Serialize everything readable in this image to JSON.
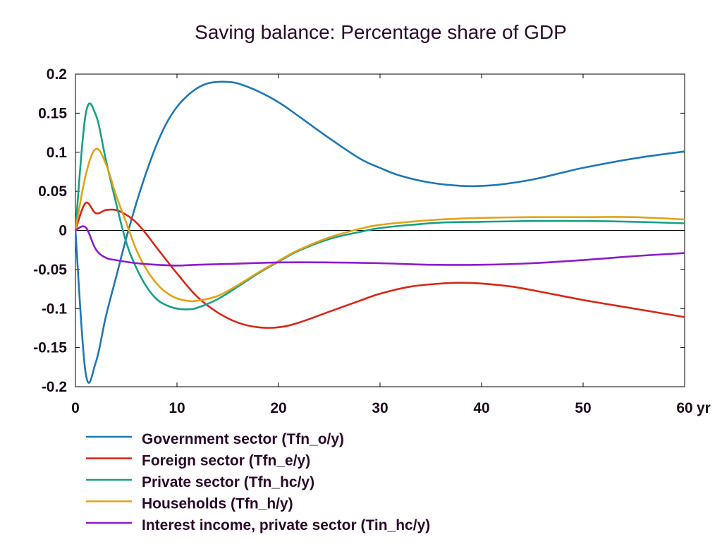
{
  "chart_data": {
    "type": "line",
    "title": "Saving balance: Percentage share of GDP",
    "xlabel": "",
    "ylabel": "",
    "x_unit_label": "yr",
    "xlim": [
      0,
      60
    ],
    "ylim": [
      -0.2,
      0.2
    ],
    "x_ticks": [
      "0",
      "10",
      "20",
      "30",
      "40",
      "50",
      "60"
    ],
    "y_ticks": [
      "0.2",
      "0.15",
      "0.1",
      "0.05",
      "0",
      "-0.05",
      "-0.1",
      "-0.15",
      "-0.2"
    ],
    "grid": false,
    "zero_line": true,
    "legend_position": "bottom-left",
    "series": [
      {
        "name": "Government sector (Tfn_o/y)",
        "color": "#1f77b4",
        "points": [
          [
            0,
            0
          ],
          [
            1,
            -0.182
          ],
          [
            2,
            -0.169
          ],
          [
            3,
            -0.11
          ],
          [
            4,
            -0.06
          ],
          [
            5,
            -0.01
          ],
          [
            6,
            0.035
          ],
          [
            7,
            0.075
          ],
          [
            8,
            0.11
          ],
          [
            9,
            0.138
          ],
          [
            10,
            0.158
          ],
          [
            11,
            0.172
          ],
          [
            12,
            0.182
          ],
          [
            13,
            0.188
          ],
          [
            14,
            0.19
          ],
          [
            15,
            0.19
          ],
          [
            16,
            0.188
          ],
          [
            18,
            0.178
          ],
          [
            20,
            0.164
          ],
          [
            22,
            0.146
          ],
          [
            25,
            0.118
          ],
          [
            28,
            0.092
          ],
          [
            30,
            0.08
          ],
          [
            32,
            0.07
          ],
          [
            35,
            0.061
          ],
          [
            38,
            0.057
          ],
          [
            40,
            0.057
          ],
          [
            42,
            0.059
          ],
          [
            45,
            0.065
          ],
          [
            48,
            0.074
          ],
          [
            50,
            0.08
          ],
          [
            55,
            0.092
          ],
          [
            60,
            0.101
          ]
        ]
      },
      {
        "name": "Foreign sector (Tfn_e/y)",
        "color": "#d62718",
        "points": [
          [
            0,
            0
          ],
          [
            1,
            0.035
          ],
          [
            2,
            0.022
          ],
          [
            3,
            0.026
          ],
          [
            4,
            0.026
          ],
          [
            5,
            0.02
          ],
          [
            6,
            0.01
          ],
          [
            7,
            -0.005
          ],
          [
            8,
            -0.022
          ],
          [
            10,
            -0.055
          ],
          [
            12,
            -0.085
          ],
          [
            14,
            -0.105
          ],
          [
            16,
            -0.118
          ],
          [
            18,
            -0.124
          ],
          [
            20,
            -0.124
          ],
          [
            22,
            -0.118
          ],
          [
            25,
            -0.104
          ],
          [
            28,
            -0.09
          ],
          [
            30,
            -0.081
          ],
          [
            33,
            -0.072
          ],
          [
            36,
            -0.068
          ],
          [
            38,
            -0.067
          ],
          [
            40,
            -0.068
          ],
          [
            43,
            -0.072
          ],
          [
            46,
            -0.079
          ],
          [
            50,
            -0.089
          ],
          [
            55,
            -0.1
          ],
          [
            60,
            -0.111
          ]
        ]
      },
      {
        "name": "Private sector (Tfn_hc/y)",
        "color": "#16a085",
        "points": [
          [
            0,
            0
          ],
          [
            1,
            0.148
          ],
          [
            2,
            0.148
          ],
          [
            3,
            0.09
          ],
          [
            4,
            0.035
          ],
          [
            5,
            -0.015
          ],
          [
            6,
            -0.048
          ],
          [
            7,
            -0.072
          ],
          [
            8,
            -0.088
          ],
          [
            9,
            -0.096
          ],
          [
            10,
            -0.1
          ],
          [
            11,
            -0.101
          ],
          [
            12,
            -0.099
          ],
          [
            14,
            -0.088
          ],
          [
            16,
            -0.072
          ],
          [
            18,
            -0.055
          ],
          [
            20,
            -0.04
          ],
          [
            22,
            -0.026
          ],
          [
            25,
            -0.011
          ],
          [
            28,
            -0.002
          ],
          [
            30,
            0.003
          ],
          [
            33,
            0.007
          ],
          [
            36,
            0.01
          ],
          [
            40,
            0.011
          ],
          [
            45,
            0.012
          ],
          [
            50,
            0.012
          ],
          [
            55,
            0.011
          ],
          [
            60,
            0.009
          ]
        ]
      },
      {
        "name": "Households (Tfn_h/y)",
        "color": "#e0a317",
        "points": [
          [
            0,
            0
          ],
          [
            1,
            0.07
          ],
          [
            2,
            0.104
          ],
          [
            3,
            0.085
          ],
          [
            4,
            0.045
          ],
          [
            5,
            0.01
          ],
          [
            6,
            -0.025
          ],
          [
            7,
            -0.05
          ],
          [
            8,
            -0.068
          ],
          [
            9,
            -0.08
          ],
          [
            10,
            -0.087
          ],
          [
            11,
            -0.09
          ],
          [
            12,
            -0.09
          ],
          [
            14,
            -0.084
          ],
          [
            16,
            -0.07
          ],
          [
            18,
            -0.054
          ],
          [
            20,
            -0.039
          ],
          [
            22,
            -0.025
          ],
          [
            25,
            -0.009
          ],
          [
            28,
            0.002
          ],
          [
            30,
            0.007
          ],
          [
            33,
            0.011
          ],
          [
            36,
            0.014
          ],
          [
            40,
            0.016
          ],
          [
            45,
            0.017
          ],
          [
            50,
            0.017
          ],
          [
            55,
            0.017
          ],
          [
            60,
            0.014
          ]
        ]
      },
      {
        "name": "Interest income, private sector (Tin_hc/y)",
        "color": "#8e1bc8",
        "points": [
          [
            0,
            0
          ],
          [
            1,
            0.004
          ],
          [
            2,
            -0.024
          ],
          [
            3,
            -0.035
          ],
          [
            4,
            -0.038
          ],
          [
            6,
            -0.042
          ],
          [
            8,
            -0.044
          ],
          [
            10,
            -0.045
          ],
          [
            12,
            -0.044
          ],
          [
            15,
            -0.043
          ],
          [
            20,
            -0.041
          ],
          [
            25,
            -0.041
          ],
          [
            30,
            -0.042
          ],
          [
            35,
            -0.044
          ],
          [
            40,
            -0.044
          ],
          [
            45,
            -0.042
          ],
          [
            50,
            -0.038
          ],
          [
            55,
            -0.033
          ],
          [
            60,
            -0.029
          ]
        ]
      }
    ]
  }
}
